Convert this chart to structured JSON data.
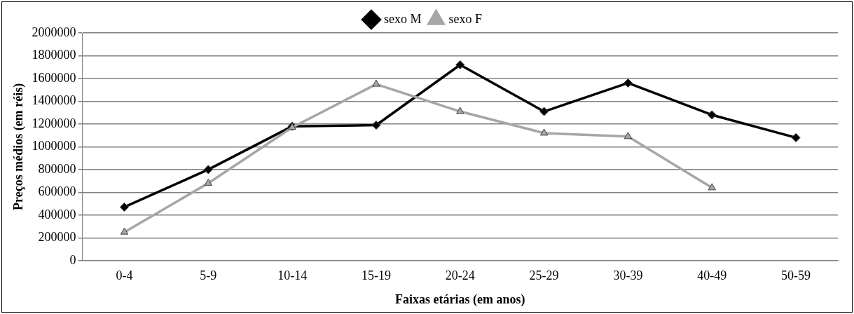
{
  "chart_data": {
    "type": "line",
    "xlabel": "Faixas etárias (em anos)",
    "ylabel": "Preços médios (em réis)",
    "categories": [
      "0-4",
      "5-9",
      "10-14",
      "15-19",
      "20-24",
      "25-29",
      "30-39",
      "40-49",
      "50-59"
    ],
    "series": [
      {
        "name": "sexo M",
        "color": "#000000",
        "marker": "diamond",
        "values": [
          470000,
          800000,
          1180000,
          1190000,
          1720000,
          1310000,
          1560000,
          1280000,
          1080000
        ]
      },
      {
        "name": "sexo F",
        "color": "#a6a6a6",
        "marker": "triangle",
        "values": [
          250000,
          680000,
          1170000,
          1550000,
          1310000,
          1120000,
          1090000,
          640000,
          null
        ]
      }
    ],
    "ylim": [
      0,
      2000000
    ],
    "yticks": [
      0,
      200000,
      400000,
      600000,
      800000,
      1000000,
      1200000,
      1400000,
      1600000,
      1800000,
      2000000
    ],
    "grid": "y",
    "legend": "top",
    "line_style": "solid"
  }
}
